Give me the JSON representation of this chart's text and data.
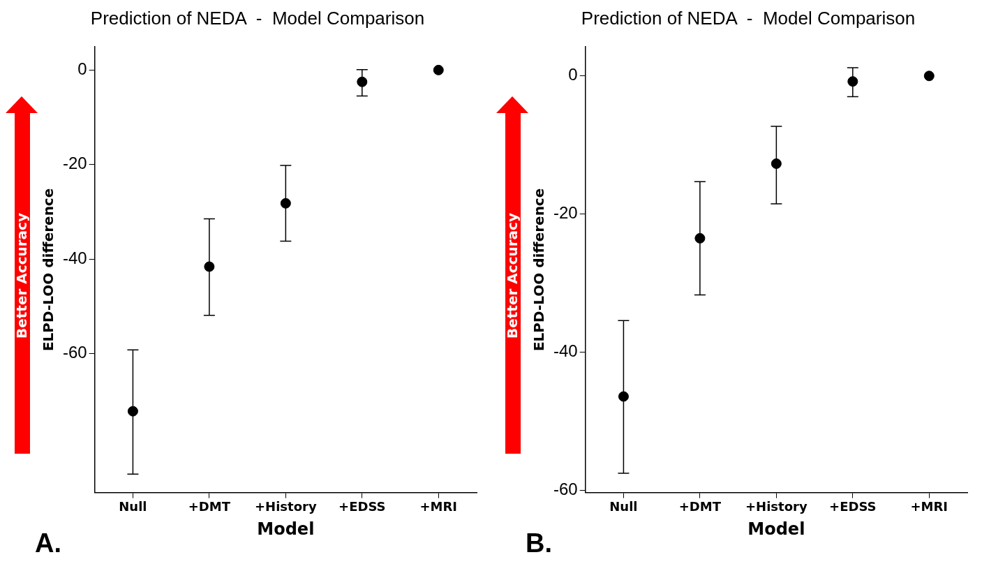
{
  "chart_data": [
    {
      "type": "scatter",
      "title": "Prediction of NEDA  -  Model Comparison",
      "xlabel": "Model",
      "ylabel": "ELPD-LOO difference",
      "categories": [
        "Null",
        "+DMT",
        "+History",
        "+EDSS",
        "+MRI"
      ],
      "series": [
        {
          "color": "#000000",
          "values": [
            -72.2,
            -41.6,
            -28.2,
            -2.5,
            0
          ],
          "errors": [
            [
              -85.5,
              -59.2
            ],
            [
              -51.9,
              -31.5
            ],
            [
              -36.2,
              -20.2
            ],
            [
              -5.5,
              0.1
            ],
            null
          ]
        }
      ],
      "ylim": [
        -89.4,
        4.9
      ],
      "yticks": [
        -60,
        -40,
        -20,
        0
      ],
      "grid": false,
      "legend": false,
      "marker": "circle",
      "annotations": [
        "A.",
        "Better Accuracy"
      ]
    },
    {
      "type": "scatter",
      "title": "Prediction of NEDA  -  Model Comparison",
      "xlabel": "Model",
      "ylabel": "ELPD-LOO difference",
      "categories": [
        "Null",
        "+DMT",
        "+History",
        "+EDSS",
        "+MRI"
      ],
      "series": [
        {
          "color": "#000000",
          "values": [
            -46.4,
            -23.5,
            -12.7,
            -0.8,
            0
          ],
          "errors": [
            [
              -57.5,
              -35.4
            ],
            [
              -31.7,
              -15.3
            ],
            [
              -18.5,
              -7.3
            ],
            [
              -3.0,
              1.2
            ],
            null
          ]
        }
      ],
      "ylim": [
        -60.3,
        4.2
      ],
      "yticks": [
        -60,
        -40,
        -20,
        0
      ],
      "grid": false,
      "legend": false,
      "marker": "circle",
      "annotations": [
        "B.",
        "Better Accuracy"
      ]
    }
  ]
}
